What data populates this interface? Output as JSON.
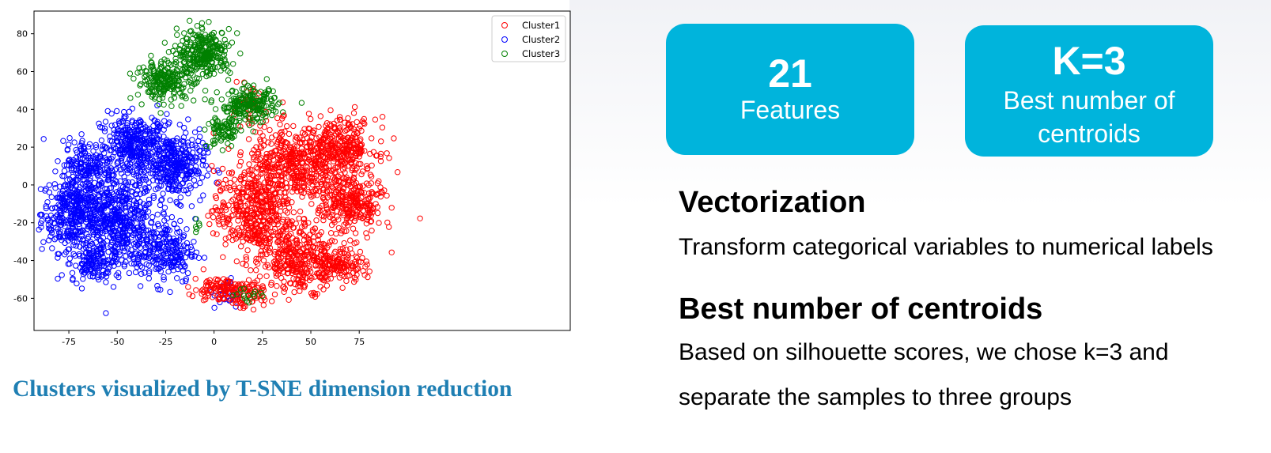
{
  "chart_data": {
    "type": "scatter",
    "title": "",
    "xlabel": "",
    "ylabel": "",
    "xlim": [
      -93,
      184
    ],
    "ylim": [
      -77,
      92
    ],
    "xticks": [
      -75,
      -50,
      -25,
      0,
      25,
      50,
      75
    ],
    "yticks": [
      80,
      60,
      40,
      20,
      0,
      -20,
      -40,
      -60
    ],
    "xtick_labels": [
      "-75",
      "-50",
      "-25",
      "0",
      "25",
      "50",
      "75"
    ],
    "ytick_labels": [
      "80",
      "60",
      "40",
      "20",
      "0",
      "-20",
      "-40",
      "-60"
    ],
    "marker": "hollow circle",
    "legend_position": "upper right",
    "series": [
      {
        "name": "Cluster1",
        "color": "#ff0000",
        "blobs": [
          {
            "cx": 20,
            "cy": -15,
            "sx": 12,
            "sy": 14,
            "n": 420
          },
          {
            "cx": 40,
            "cy": 10,
            "sx": 13,
            "sy": 12,
            "n": 420
          },
          {
            "cx": 65,
            "cy": 20,
            "sx": 11,
            "sy": 9,
            "n": 300
          },
          {
            "cx": 70,
            "cy": -10,
            "sx": 10,
            "sy": 10,
            "n": 300
          },
          {
            "cx": 45,
            "cy": -40,
            "sx": 12,
            "sy": 9,
            "n": 320
          },
          {
            "cx": 65,
            "cy": -42,
            "sx": 8,
            "sy": 5,
            "n": 120
          },
          {
            "cx": 3,
            "cy": -55,
            "sx": 8,
            "sy": 4,
            "n": 110
          },
          {
            "cx": 18,
            "cy": -58,
            "sx": 7,
            "sy": 4,
            "n": 60
          },
          {
            "cx": 18,
            "cy": 40,
            "sx": 5,
            "sy": 6,
            "n": 40
          }
        ]
      },
      {
        "name": "Cluster2",
        "color": "#0000ff",
        "blobs": [
          {
            "cx": -72,
            "cy": -15,
            "sx": 10,
            "sy": 12,
            "n": 380
          },
          {
            "cx": -50,
            "cy": -20,
            "sx": 12,
            "sy": 14,
            "n": 480
          },
          {
            "cx": -40,
            "cy": 20,
            "sx": 11,
            "sy": 10,
            "n": 380
          },
          {
            "cx": -20,
            "cy": 10,
            "sx": 9,
            "sy": 10,
            "n": 300
          },
          {
            "cx": -25,
            "cy": -35,
            "sx": 9,
            "sy": 10,
            "n": 220
          },
          {
            "cx": -65,
            "cy": 10,
            "sx": 8,
            "sy": 8,
            "n": 160
          },
          {
            "cx": -62,
            "cy": -42,
            "sx": 7,
            "sy": 5,
            "n": 110
          },
          {
            "cx": 7,
            "cy": -58,
            "sx": 4,
            "sy": 5,
            "n": 24
          }
        ]
      },
      {
        "name": "Cluster3",
        "color": "#008000",
        "blobs": [
          {
            "cx": -25,
            "cy": 55,
            "sx": 9,
            "sy": 6,
            "n": 220
          },
          {
            "cx": -5,
            "cy": 70,
            "sx": 8,
            "sy": 7,
            "n": 280
          },
          {
            "cx": 18,
            "cy": 42,
            "sx": 9,
            "sy": 5,
            "n": 200
          },
          {
            "cx": 5,
            "cy": 28,
            "sx": 5,
            "sy": 5,
            "n": 80
          },
          {
            "cx": 15,
            "cy": -58,
            "sx": 6,
            "sy": 3,
            "n": 14
          },
          {
            "cx": -8,
            "cy": -22,
            "sx": 2,
            "sy": 2,
            "n": 6
          }
        ]
      }
    ]
  },
  "caption": "Clusters visualized by T-SNE dimension reduction",
  "tiles": [
    {
      "big": "21",
      "small": "Features",
      "color": "#00b4dc"
    },
    {
      "big": "K=3",
      "small_line1": "Best number of",
      "small_line2": "centroids",
      "color": "#00b4dc"
    }
  ],
  "sections": {
    "vectorization_heading": "Vectorization",
    "vectorization_text": "Transform categorical variables to numerical labels",
    "best_heading": "Best number of centroids",
    "best_text_line1": "Based on silhouette scores, we chose k=3 and",
    "best_text_line2": "separate the samples to three groups"
  }
}
